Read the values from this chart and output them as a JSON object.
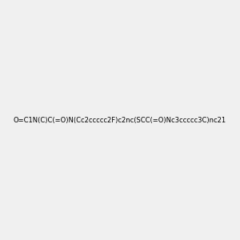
{
  "smiles": "O=C1N(C)C(=O)N(Cc2ccccc2F)c2nc(SCC(=O)Nc3ccccc3C)nc21",
  "title": "",
  "bg_color": "#f0f0f0",
  "figsize": [
    3.0,
    3.0
  ],
  "dpi": 100
}
